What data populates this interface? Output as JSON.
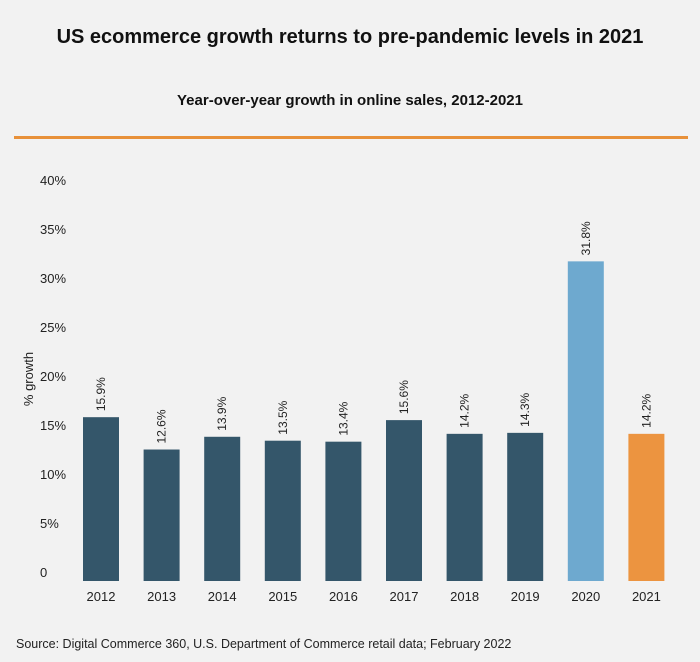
{
  "title": "US ecommerce growth returns to pre-pandemic levels in 2021",
  "subtitle": "Year-over-year growth in online sales, 2012-2021",
  "source": "Source: Digital Commerce 360, U.S. Department of Commerce retail data; February 2022",
  "colors": {
    "bar_default": "#34566a",
    "bar_2020": "#6ea9cf",
    "bar_2021": "#ec9440",
    "rule": "#e8913a"
  },
  "chart_data": {
    "type": "bar",
    "ylabel": "% growth",
    "ylim": [
      0,
      40
    ],
    "yticks": [
      0,
      5,
      10,
      15,
      20,
      25,
      30,
      35,
      40
    ],
    "ytick_labels": [
      "0",
      "5%",
      "10%",
      "15%",
      "20%",
      "25%",
      "30%",
      "35%",
      "40%"
    ],
    "grid": false,
    "categories": [
      "2012",
      "2013",
      "2014",
      "2015",
      "2016",
      "2017",
      "2018",
      "2019",
      "2020",
      "2021"
    ],
    "values": [
      15.9,
      12.6,
      13.9,
      13.5,
      13.4,
      15.6,
      14.2,
      14.3,
      31.8,
      14.2
    ],
    "data_labels": [
      "15.9%",
      "12.6%",
      "13.9%",
      "13.5%",
      "13.4%",
      "15.6%",
      "14.2%",
      "14.3%",
      "31.8%",
      "14.2%"
    ],
    "bar_colors": [
      "#34566a",
      "#34566a",
      "#34566a",
      "#34566a",
      "#34566a",
      "#34566a",
      "#34566a",
      "#34566a",
      "#6ea9cf",
      "#ec9440"
    ]
  }
}
